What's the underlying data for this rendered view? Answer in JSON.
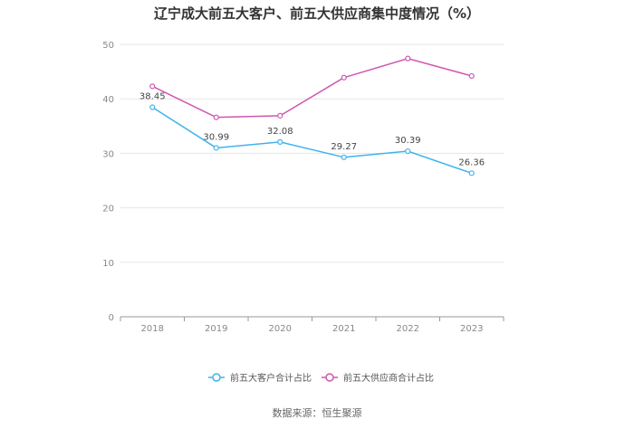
{
  "chart_data": {
    "type": "line",
    "title": "辽宁成大前五大客户、前五大供应商集中度情况（%）",
    "categories": [
      "2018",
      "2019",
      "2020",
      "2021",
      "2022",
      "2023"
    ],
    "ylim": [
      0,
      50
    ],
    "yticks": [
      0,
      10,
      20,
      30,
      40,
      50
    ],
    "grid": true,
    "legend_position": "bottom",
    "series": [
      {
        "name": "前五大客户合计占比",
        "values": [
          38.45,
          30.99,
          32.08,
          29.27,
          30.39,
          26.36
        ],
        "labels": [
          "38.45",
          "30.99",
          "32.08",
          "29.27",
          "30.39",
          "26.36"
        ],
        "color": "#3fb3ec"
      },
      {
        "name": "前五大供应商合计占比",
        "values": [
          42.3,
          36.6,
          36.9,
          43.9,
          47.4,
          44.2
        ],
        "color": "#d056b0"
      }
    ]
  },
  "footer": {
    "source": "数据来源：恒生聚源"
  }
}
